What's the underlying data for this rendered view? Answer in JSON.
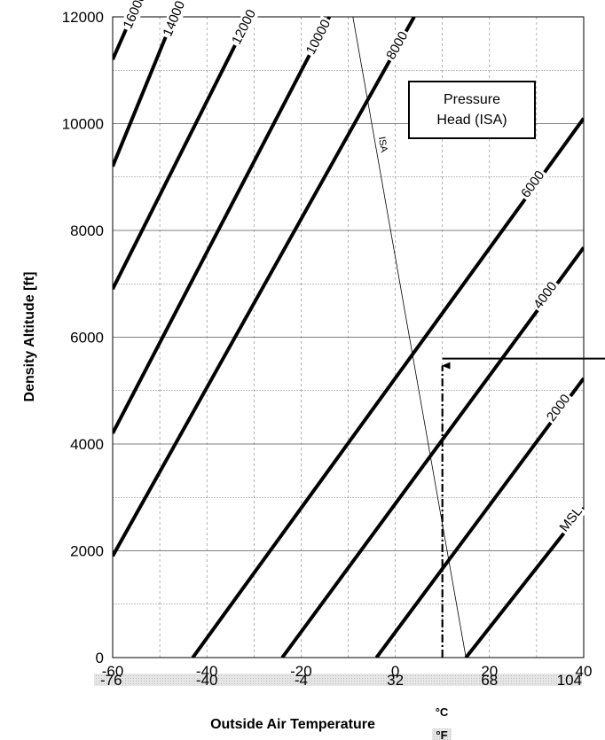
{
  "chart_data": {
    "type": "line",
    "title": "",
    "xlabel": "Outside Air Temperature",
    "ylabel": "Density Altitude [ft]",
    "x_unit_primary": "°C",
    "x_unit_secondary": "°F",
    "xlim": [
      -60,
      40
    ],
    "ylim": [
      0,
      12000
    ],
    "x_ticks": [
      "-60",
      "-40",
      "-20",
      "0",
      "20",
      "40"
    ],
    "x_ticks_fahrenheit": [
      "-76",
      "-40",
      "-4",
      "32",
      "68",
      "104"
    ],
    "y_ticks": [
      "0",
      "2000",
      "4000",
      "6000",
      "8000",
      "10000",
      "12000"
    ],
    "grid": true,
    "legend": {
      "title_line1": "Pressure",
      "title_line2": "Head (ISA)",
      "placement": "top-right"
    },
    "series": [
      {
        "name": "MSL",
        "points": [
          [
            15,
            0
          ],
          [
            40,
            2800
          ]
        ]
      },
      {
        "name": "2000",
        "points": [
          [
            -4,
            0
          ],
          [
            40,
            5230
          ]
        ]
      },
      {
        "name": "4000",
        "points": [
          [
            -24,
            0
          ],
          [
            40,
            7680
          ]
        ]
      },
      {
        "name": "6000",
        "points": [
          [
            -43,
            0
          ],
          [
            40,
            10100
          ]
        ]
      },
      {
        "name": "8000",
        "points": [
          [
            -60,
            1900
          ],
          [
            4,
            12000
          ]
        ]
      },
      {
        "name": "10000",
        "points": [
          [
            -60,
            4200
          ],
          [
            -14,
            12000
          ]
        ]
      },
      {
        "name": "12000",
        "points": [
          [
            -60,
            6900
          ],
          [
            -31,
            12000
          ]
        ]
      },
      {
        "name": "14000",
        "points": [
          [
            -60,
            9200
          ],
          [
            -47,
            12000
          ]
        ]
      },
      {
        "name": "16000",
        "points": [
          [
            -60,
            11200
          ],
          [
            -56,
            12000
          ]
        ]
      }
    ],
    "isa_line": {
      "name": "ISA",
      "points": [
        [
          -9,
          12000
        ],
        [
          15,
          0
        ]
      ]
    },
    "example_path": {
      "x": 10,
      "y": 5600,
      "x_end": 40
    },
    "colors": {
      "curve": "#000000",
      "grid": "#7f7f7f",
      "fahrenheit_band": "#d9d9d9"
    }
  }
}
